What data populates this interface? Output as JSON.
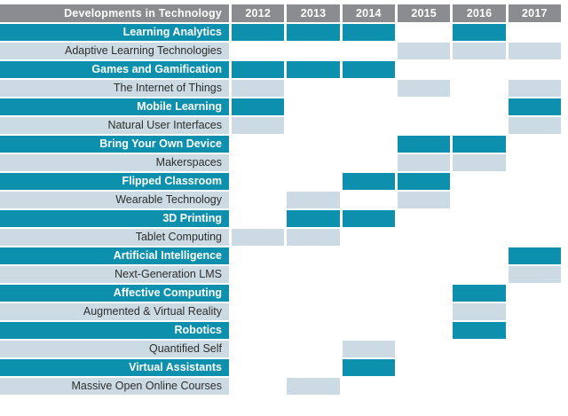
{
  "palette": {
    "teal": "#0d90ad",
    "light_blue": "#ccdbe3",
    "header_gray": "#8a8c8f",
    "dark_text": "#2d2d2d"
  },
  "header": {
    "label": "Developments in Technology",
    "years": [
      "2012",
      "2013",
      "2014",
      "2015",
      "2016",
      "2017"
    ]
  },
  "rows": [
    {
      "label": "Learning Analytics",
      "style": "teal",
      "years": [
        2012,
        2013,
        2014,
        2016
      ]
    },
    {
      "label": "Adaptive Learning Technologies",
      "style": "light",
      "years": [
        2015,
        2016,
        2017
      ]
    },
    {
      "label": "Games and Gamification",
      "style": "teal",
      "years": [
        2012,
        2013,
        2014
      ]
    },
    {
      "label": "The Internet of Things",
      "style": "light",
      "years": [
        2012,
        2015,
        2017
      ]
    },
    {
      "label": "Mobile Learning",
      "style": "teal",
      "years": [
        2012,
        2017
      ]
    },
    {
      "label": "Natural User Interfaces",
      "style": "light",
      "years": [
        2012,
        2017
      ]
    },
    {
      "label": "Bring Your Own Device",
      "style": "teal",
      "years": [
        2015,
        2016
      ]
    },
    {
      "label": "Makerspaces",
      "style": "light",
      "years": [
        2015,
        2016
      ]
    },
    {
      "label": "Flipped Classroom",
      "style": "teal",
      "years": [
        2014,
        2015
      ]
    },
    {
      "label": "Wearable Technology",
      "style": "light",
      "years": [
        2013,
        2015
      ]
    },
    {
      "label": "3D Printing",
      "style": "teal",
      "years": [
        2013,
        2014
      ]
    },
    {
      "label": "Tablet Computing",
      "style": "light",
      "years": [
        2012,
        2013
      ]
    },
    {
      "label": "Artificial Intelligence",
      "style": "teal",
      "years": [
        2017
      ]
    },
    {
      "label": "Next-Generation LMS",
      "style": "light",
      "years": [
        2017
      ]
    },
    {
      "label": "Affective Computing",
      "style": "teal",
      "years": [
        2016
      ]
    },
    {
      "label": "Augmented & Virtual Reality",
      "style": "light",
      "years": [
        2016
      ]
    },
    {
      "label": "Robotics",
      "style": "teal",
      "years": [
        2016
      ]
    },
    {
      "label": "Quantified Self",
      "style": "light",
      "years": [
        2014
      ]
    },
    {
      "label": "Virtual Assistants",
      "style": "teal",
      "years": [
        2014
      ]
    },
    {
      "label": "Massive Open Online Courses",
      "style": "light",
      "years": [
        2013
      ]
    }
  ],
  "chart_data": {
    "type": "heatmap",
    "title": "Developments in Technology",
    "x": [
      "2012",
      "2013",
      "2014",
      "2015",
      "2016",
      "2017"
    ],
    "rows": [
      {
        "name": "Learning Analytics",
        "active_years": [
          2012,
          2013,
          2014,
          2016
        ]
      },
      {
        "name": "Adaptive Learning Technologies",
        "active_years": [
          2015,
          2016,
          2017
        ]
      },
      {
        "name": "Games and Gamification",
        "active_years": [
          2012,
          2013,
          2014
        ]
      },
      {
        "name": "The Internet of Things",
        "active_years": [
          2012,
          2015,
          2017
        ]
      },
      {
        "name": "Mobile Learning",
        "active_years": [
          2012,
          2017
        ]
      },
      {
        "name": "Natural User Interfaces",
        "active_years": [
          2012,
          2017
        ]
      },
      {
        "name": "Bring Your Own Device",
        "active_years": [
          2015,
          2016
        ]
      },
      {
        "name": "Makerspaces",
        "active_years": [
          2015,
          2016
        ]
      },
      {
        "name": "Flipped Classroom",
        "active_years": [
          2014,
          2015
        ]
      },
      {
        "name": "Wearable Technology",
        "active_years": [
          2013,
          2015
        ]
      },
      {
        "name": "3D Printing",
        "active_years": [
          2013,
          2014
        ]
      },
      {
        "name": "Tablet Computing",
        "active_years": [
          2012,
          2013
        ]
      },
      {
        "name": "Artificial Intelligence",
        "active_years": [
          2017
        ]
      },
      {
        "name": "Next-Generation LMS",
        "active_years": [
          2017
        ]
      },
      {
        "name": "Affective Computing",
        "active_years": [
          2016
        ]
      },
      {
        "name": "Augmented & Virtual Reality",
        "active_years": [
          2016
        ]
      },
      {
        "name": "Robotics",
        "active_years": [
          2016
        ]
      },
      {
        "name": "Quantified Self",
        "active_years": [
          2014
        ]
      },
      {
        "name": "Virtual Assistants",
        "active_years": [
          2014
        ]
      },
      {
        "name": "Massive Open Online Courses",
        "active_years": [
          2013
        ]
      }
    ],
    "legend": "none",
    "grid": false,
    "notes": "Filled cell = technology highlighted for that year; teal and pale-blue row colors alternate in pairs"
  }
}
